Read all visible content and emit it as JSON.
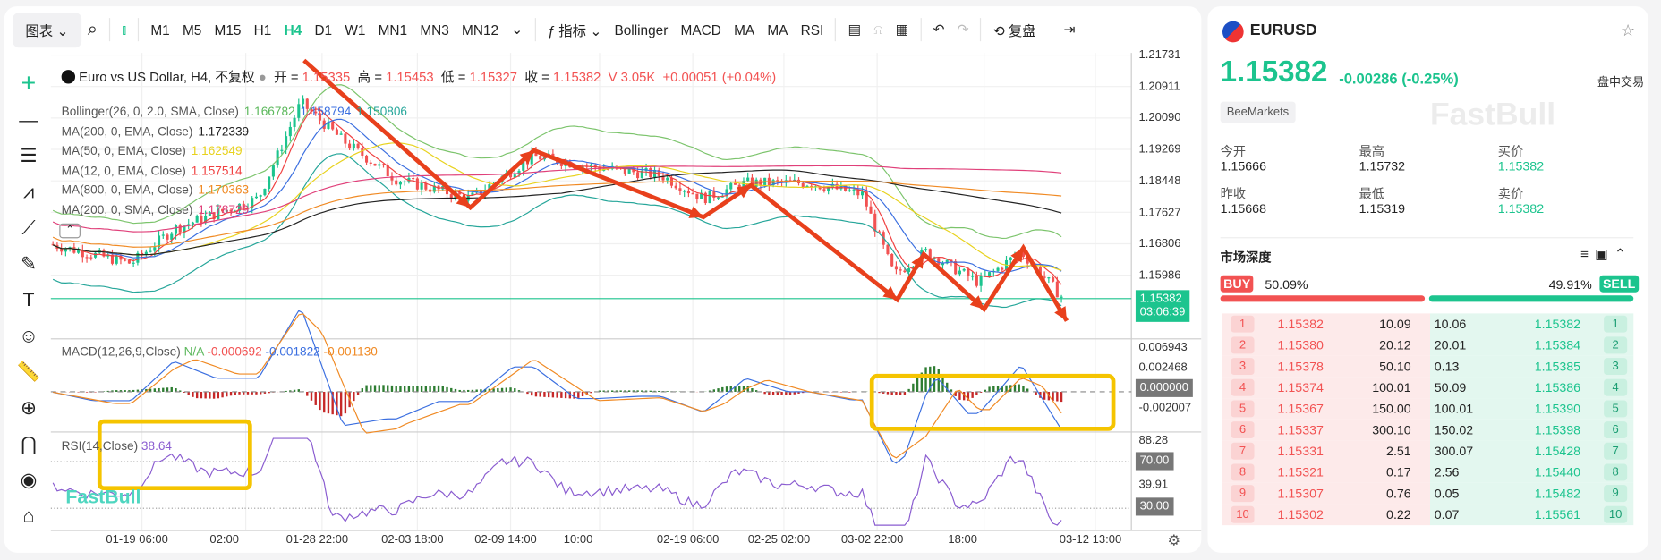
{
  "toolbar": {
    "chart_menu": "图表",
    "timeframes": [
      "M1",
      "M5",
      "M15",
      "H1",
      "H4",
      "D1",
      "W1",
      "MN1",
      "MN3",
      "MN12"
    ],
    "active_timeframe": "H4",
    "indicators_label": "指标",
    "indicator_buttons": [
      "Bollinger",
      "MACD",
      "MA",
      "MA",
      "RSI"
    ],
    "replay_label": "复盘"
  },
  "legend": {
    "title": "Euro vs US Dollar, H4, 不复权",
    "open_label": "开 =",
    "open": "1.15335",
    "high_label": "高 =",
    "high": "1.15453",
    "low_label": "低 =",
    "low": "1.15327",
    "close_label": "收 =",
    "close": "1.15382",
    "volume": "V 3.05K",
    "change": "+0.00051 (+0.04%)",
    "indicators": [
      {
        "name": "Bollinger(26, 0, 2.0, SMA, Close)",
        "values": [
          "1.166782",
          "1.158794",
          "1.150806"
        ],
        "colors": [
          "#5cb85c",
          "#3b6fe0",
          "#26a69a"
        ]
      },
      {
        "name": "MA(200, 0, EMA, Close)",
        "values": [
          "1.172339"
        ],
        "colors": [
          "#222222"
        ]
      },
      {
        "name": "MA(50, 0, EMA, Close)",
        "values": [
          "1.162549"
        ],
        "colors": [
          "#e8d21d"
        ]
      },
      {
        "name": "MA(12, 0, EMA, Close)",
        "values": [
          "1.157514"
        ],
        "colors": [
          "#f04040"
        ]
      },
      {
        "name": "MA(800, 0, EMA, Close)",
        "values": [
          "1.170363"
        ],
        "colors": [
          "#f08a24"
        ]
      },
      {
        "name": "MA(200, 0, SMA, Close)",
        "values": [
          "1.178729"
        ],
        "colors": [
          "#e0407a"
        ]
      }
    ]
  },
  "price_axis": [
    "1.21731",
    "1.20911",
    "1.20090",
    "1.19269",
    "1.18448",
    "1.17627",
    "1.16806",
    "1.15986"
  ],
  "current_price_tag": {
    "price": "1.15382",
    "countdown": "03:06:39"
  },
  "macd": {
    "label": "MACD(12,26,9,Close)",
    "values": [
      "N/A",
      "-0.000692",
      "-0.001822",
      "-0.001130"
    ],
    "axis": [
      "0.006943",
      "0.002468",
      "-0.002007"
    ],
    "zero_tag": "0.000000"
  },
  "rsi": {
    "label": "RSI(14,Close)",
    "value": "38.64",
    "axis": [
      "88.28",
      "39.91"
    ],
    "tags": [
      "70.00",
      "30.00"
    ]
  },
  "time_axis": [
    "01-19 06:00",
    "02:00",
    "01-28 22:00",
    "02-03 18:00",
    "02-09 14:00",
    "10:00",
    "02-19 06:00",
    "02-25 02:00",
    "03-02 22:00",
    "18:00",
    "03-12 13:00"
  ],
  "watermark": "FastBull",
  "quote": {
    "symbol": "EURUSD",
    "price": "1.15382",
    "change": "-0.00286",
    "change_pct": "(-0.25%)",
    "session": "盘中交易",
    "broker": "BeeMarkets",
    "stats": [
      {
        "label": "今开",
        "value": "1.15666"
      },
      {
        "label": "最高",
        "value": "1.15732"
      },
      {
        "label": "买价",
        "value": "1.15382"
      },
      {
        "label": "昨收",
        "value": "1.15668"
      },
      {
        "label": "最低",
        "value": "1.15319"
      },
      {
        "label": "卖价",
        "value": "1.15382"
      }
    ]
  },
  "depth": {
    "title": "市场深度",
    "buy_label": "BUY",
    "buy_pct": "50.09%",
    "sell_label": "SELL",
    "sell_pct": "49.91%",
    "buy_fraction": 0.5009,
    "rows": [
      {
        "n": "1",
        "bid": "1.15382",
        "bid_vol": "10.09",
        "ask_vol": "10.06",
        "ask": "1.15382"
      },
      {
        "n": "2",
        "bid": "1.15380",
        "bid_vol": "20.12",
        "ask_vol": "20.01",
        "ask": "1.15384"
      },
      {
        "n": "3",
        "bid": "1.15378",
        "bid_vol": "50.10",
        "ask_vol": "0.13",
        "ask": "1.15385"
      },
      {
        "n": "4",
        "bid": "1.15374",
        "bid_vol": "100.01",
        "ask_vol": "50.09",
        "ask": "1.15386"
      },
      {
        "n": "5",
        "bid": "1.15367",
        "bid_vol": "150.00",
        "ask_vol": "100.01",
        "ask": "1.15390"
      },
      {
        "n": "6",
        "bid": "1.15337",
        "bid_vol": "300.10",
        "ask_vol": "150.02",
        "ask": "1.15398"
      },
      {
        "n": "7",
        "bid": "1.15331",
        "bid_vol": "2.51",
        "ask_vol": "300.07",
        "ask": "1.15428"
      },
      {
        "n": "8",
        "bid": "1.15321",
        "bid_vol": "0.17",
        "ask_vol": "2.56",
        "ask": "1.15440"
      },
      {
        "n": "9",
        "bid": "1.15307",
        "bid_vol": "0.76",
        "ask_vol": "0.05",
        "ask": "1.15482"
      },
      {
        "n": "10",
        "bid": "1.15302",
        "bid_vol": "0.22",
        "ask_vol": "0.07",
        "ask": "1.15561"
      }
    ]
  },
  "colors": {
    "up": "#1cc48e",
    "down": "#f25252",
    "accent": "#1cc48e",
    "highlight_box": "#f5c400",
    "arrow": "#e8401c"
  }
}
